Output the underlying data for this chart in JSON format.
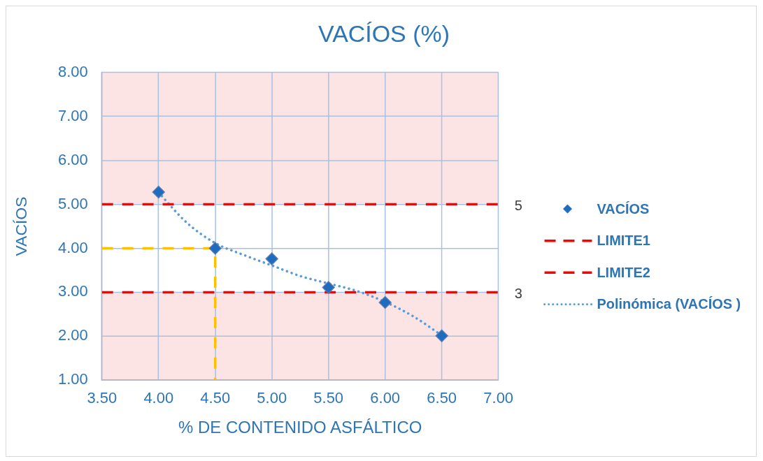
{
  "chart_data": {
    "type": "scatter",
    "title": "VACÍOS (%)",
    "xlabel": "% DE CONTENIDO ASFÁLTICO",
    "ylabel": "VACÍOS",
    "xlim": [
      3.5,
      7.0
    ],
    "xticks": [
      {
        "value": 3.5,
        "label": "3.50"
      },
      {
        "value": 4.0,
        "label": "4.00"
      },
      {
        "value": 4.5,
        "label": "4.50"
      },
      {
        "value": 5.0,
        "label": "5.00"
      },
      {
        "value": 5.5,
        "label": "5.50"
      },
      {
        "value": 6.0,
        "label": "6.00"
      },
      {
        "value": 6.5,
        "label": "6.50"
      },
      {
        "value": 7.0,
        "label": "7.00"
      }
    ],
    "ylim": [
      1,
      8
    ],
    "yticks": [
      {
        "value": 1,
        "label": "1.00"
      },
      {
        "value": 2,
        "label": "2.00"
      },
      {
        "value": 3,
        "label": "3.00"
      },
      {
        "value": 4,
        "label": "4.00"
      },
      {
        "value": 5,
        "label": "5.00"
      },
      {
        "value": 6,
        "label": "6.00"
      },
      {
        "value": 7,
        "label": "7.00"
      },
      {
        "value": 8,
        "label": "8.00"
      }
    ],
    "grid": true,
    "legend": "right",
    "bands": [
      {
        "axis": "y",
        "from": 5,
        "to": 8,
        "color": "#fde4e4"
      },
      {
        "axis": "y",
        "from": 1,
        "to": 3,
        "color": "#fde4e4"
      }
    ],
    "series": [
      {
        "name": "VACÍOS",
        "type": "scatter",
        "color": "#1f6cbf",
        "marker": "diamond",
        "x": [
          4.0,
          4.5,
          5.0,
          5.5,
          6.0,
          6.5
        ],
        "values": [
          5.28,
          4.0,
          3.76,
          3.11,
          2.77,
          2.01
        ]
      },
      {
        "name": "LIMITE1",
        "type": "line",
        "color": "#ff0000",
        "line_style": "dashed",
        "marker": "none",
        "x": [
          3.5,
          7.0
        ],
        "values": [
          5,
          5
        ],
        "value_labels": [
          null,
          "5"
        ]
      },
      {
        "name": "LIMITE2",
        "type": "line",
        "color": "#ff0000",
        "line_style": "dashed",
        "marker": "none",
        "x": [
          3.5,
          7.0
        ],
        "values": [
          3,
          3
        ],
        "value_labels": [
          null,
          "3"
        ]
      },
      {
        "name": "Polinómica (VACÍOS )",
        "type": "line",
        "color": "#5b9bd5",
        "line_style": "dotted",
        "marker": "none",
        "x": [
          4.0,
          4.25,
          4.5,
          4.75,
          5.0,
          5.25,
          5.5,
          5.75,
          6.0,
          6.25,
          6.5
        ],
        "values": [
          5.27,
          4.58,
          4.12,
          3.85,
          3.61,
          3.37,
          3.2,
          3.03,
          2.78,
          2.45,
          2.02
        ]
      },
      {
        "type": "line",
        "color": "#ffc000",
        "line_style": "dashed",
        "marker": "none",
        "x": [
          3.5,
          4.5,
          4.5
        ],
        "values": [
          4,
          4,
          1
        ]
      }
    ]
  }
}
